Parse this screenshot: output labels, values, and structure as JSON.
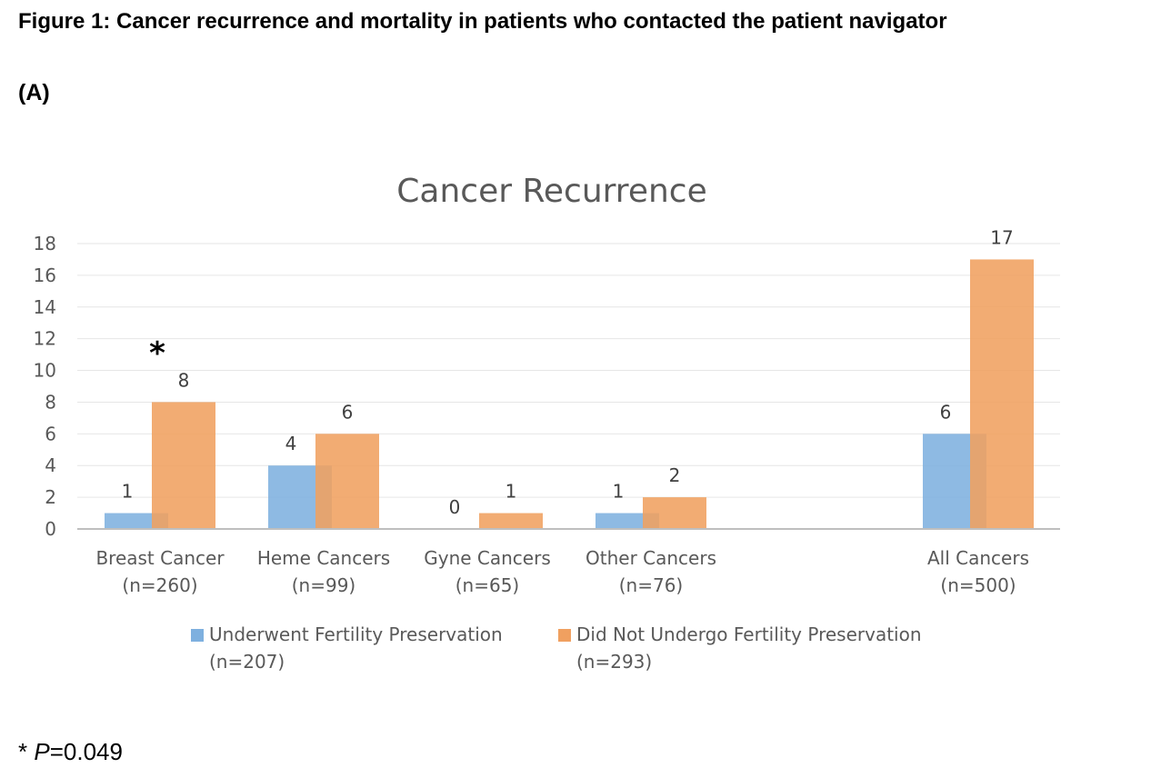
{
  "figure": {
    "title": "Figure 1: Cancer recurrence and mortality in patients who contacted the patient navigator",
    "panel_label": "(A)",
    "footnote_star": "*",
    "footnote_p": "P",
    "footnote_value": "=0.049"
  },
  "colors": {
    "underwent": "#7EB0DF",
    "did_not": "#F0A060",
    "grid": "#E6E6E6",
    "axis": "#BFBFBF",
    "text": "#595959"
  },
  "chart_data": {
    "type": "bar",
    "title": "Cancer Recurrence",
    "categories": [
      [
        "Breast Cancer",
        "(n=260)"
      ],
      [
        "Heme Cancers",
        "(n=99)"
      ],
      [
        "Gyne Cancers",
        "(n=65)"
      ],
      [
        "Other Cancers",
        "(n=76)"
      ],
      [
        "All Cancers",
        "(n=500)"
      ]
    ],
    "series": [
      {
        "name": [
          "Underwent Fertility Preservation",
          "(n=207)"
        ],
        "values": [
          1,
          4,
          0,
          1,
          6
        ]
      },
      {
        "name": [
          "Did Not Undergo Fertility Preservation",
          "(n=293)"
        ],
        "values": [
          8,
          6,
          1,
          2,
          17
        ]
      }
    ],
    "yticks": [
      0,
      2,
      4,
      6,
      8,
      10,
      12,
      14,
      16,
      18
    ],
    "ylim": [
      0,
      18
    ],
    "grid": true,
    "legend": "bottom",
    "annotation": {
      "text": "*",
      "category": "Breast Cancer"
    }
  }
}
